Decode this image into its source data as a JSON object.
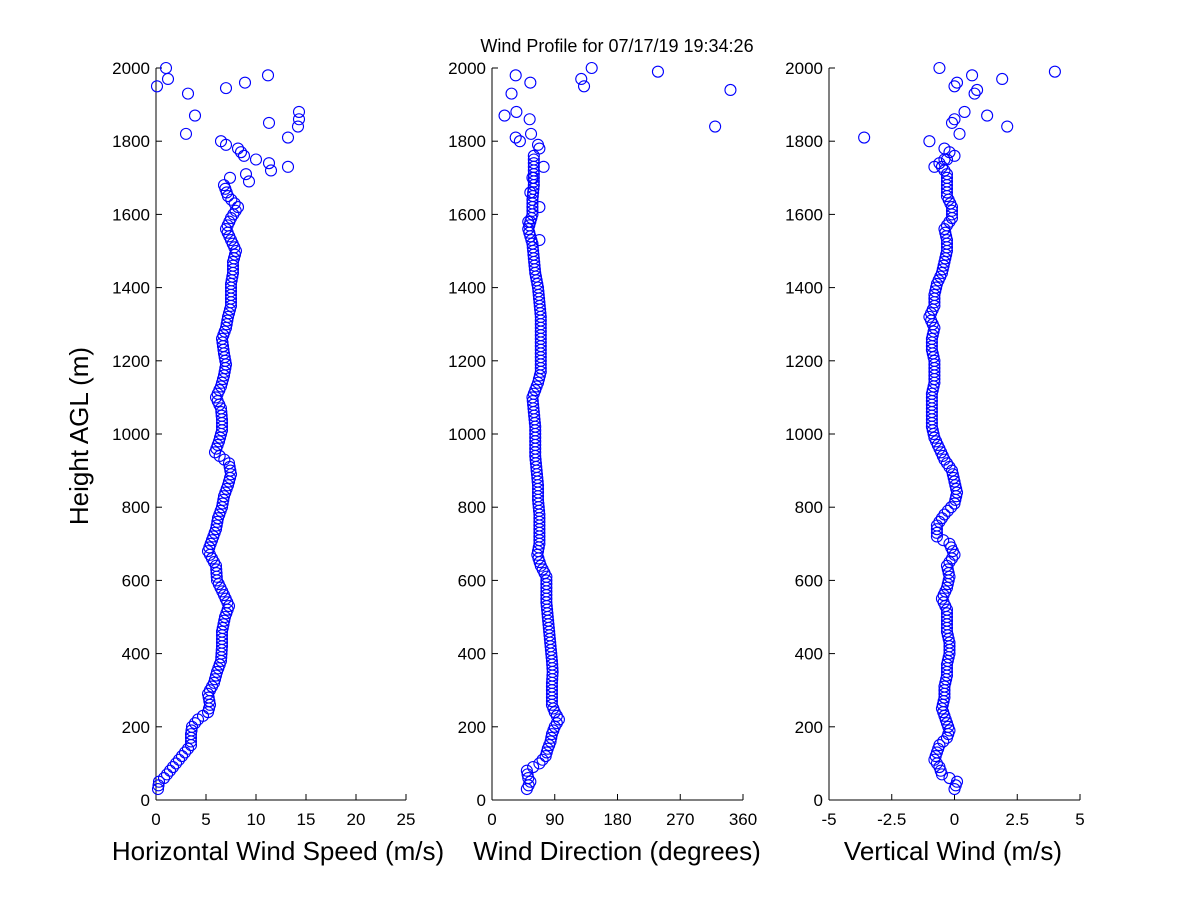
{
  "colors": {
    "marker": "#0000ff",
    "axis": "#000000",
    "background": "#ffffff"
  },
  "chart_data": [
    {
      "type": "scatter",
      "title": "Wind Profile for  07/17/19 19:34:26",
      "xlabel": "Horizontal Wind Speed (m/s)",
      "ylabel": "Height AGL (m)",
      "xlim": [
        0,
        25
      ],
      "ylim": [
        0,
        2000
      ],
      "xticks": [
        "0",
        "5",
        "10",
        "15",
        "20",
        "25"
      ],
      "yticks": [
        "0",
        "200",
        "400",
        "600",
        "800",
        "1000",
        "1200",
        "1400",
        "1600",
        "1800",
        "2000"
      ],
      "grid": false,
      "marker": "open-circle",
      "profile": [
        [
          30,
          0.2
        ],
        [
          50,
          0.3
        ],
        [
          60,
          0.8
        ],
        [
          80,
          1.4
        ],
        [
          100,
          2.0
        ],
        [
          120,
          2.6
        ],
        [
          150,
          3.5
        ],
        [
          180,
          3.5
        ],
        [
          200,
          3.6
        ],
        [
          220,
          4.2
        ],
        [
          240,
          5.2
        ],
        [
          260,
          5.4
        ],
        [
          290,
          5.2
        ],
        [
          320,
          5.8
        ],
        [
          350,
          6.1
        ],
        [
          380,
          6.5
        ],
        [
          420,
          6.6
        ],
        [
          460,
          6.6
        ],
        [
          500,
          6.9
        ],
        [
          530,
          7.3
        ],
        [
          560,
          6.8
        ],
        [
          600,
          6.1
        ],
        [
          640,
          6.0
        ],
        [
          680,
          5.2
        ],
        [
          710,
          5.6
        ],
        [
          740,
          6.0
        ],
        [
          770,
          6.2
        ],
        [
          800,
          6.6
        ],
        [
          830,
          6.8
        ],
        [
          860,
          7.2
        ],
        [
          890,
          7.5
        ],
        [
          920,
          7.3
        ],
        [
          950,
          5.9
        ],
        [
          980,
          6.3
        ],
        [
          1010,
          6.6
        ],
        [
          1040,
          6.6
        ],
        [
          1070,
          6.5
        ],
        [
          1100,
          6.0
        ],
        [
          1130,
          6.5
        ],
        [
          1160,
          6.8
        ],
        [
          1190,
          7.0
        ],
        [
          1220,
          6.8
        ],
        [
          1260,
          6.6
        ],
        [
          1290,
          7.0
        ],
        [
          1320,
          7.2
        ],
        [
          1350,
          7.5
        ],
        [
          1380,
          7.5
        ],
        [
          1410,
          7.5
        ],
        [
          1440,
          7.7
        ],
        [
          1470,
          7.7
        ],
        [
          1500,
          8.0
        ],
        [
          1530,
          7.5
        ],
        [
          1560,
          7.0
        ],
        [
          1590,
          7.5
        ],
        [
          1620,
          8.2
        ],
        [
          1650,
          7.2
        ],
        [
          1680,
          6.8
        ]
      ],
      "scattered": [
        [
          1700,
          7.4
        ],
        [
          1720,
          11.5
        ],
        [
          1730,
          13.2
        ],
        [
          1690,
          9.3
        ],
        [
          1710,
          9.0
        ],
        [
          1740,
          11.3
        ],
        [
          1750,
          10.0
        ],
        [
          1760,
          8.8
        ],
        [
          1770,
          8.5
        ],
        [
          1780,
          8.2
        ],
        [
          1790,
          7.0
        ],
        [
          1800,
          6.5
        ],
        [
          1810,
          13.2
        ],
        [
          1820,
          3.0
        ],
        [
          1840,
          14.2
        ],
        [
          1850,
          11.3
        ],
        [
          1860,
          14.3
        ],
        [
          1870,
          3.9
        ],
        [
          1880,
          14.3
        ],
        [
          1930,
          3.2
        ],
        [
          1945,
          7.0
        ],
        [
          1950,
          0.1
        ],
        [
          1960,
          8.9
        ],
        [
          1970,
          1.2
        ],
        [
          1980,
          11.2
        ],
        [
          2000,
          1.0
        ]
      ]
    },
    {
      "type": "scatter",
      "xlabel": "Wind Direction (degrees)",
      "xlim": [
        0,
        360
      ],
      "ylim": [
        0,
        2000
      ],
      "xticks": [
        "0",
        "90",
        "180",
        "270",
        "360"
      ],
      "yticks": [
        "0",
        "200",
        "400",
        "600",
        "800",
        "1000",
        "1200",
        "1400",
        "1600",
        "1800",
        "2000"
      ],
      "grid": false,
      "marker": "open-circle",
      "profile": [
        [
          30,
          50
        ],
        [
          50,
          55
        ],
        [
          60,
          52
        ],
        [
          80,
          50
        ],
        [
          100,
          68
        ],
        [
          120,
          77
        ],
        [
          140,
          80
        ],
        [
          160,
          84
        ],
        [
          180,
          86
        ],
        [
          200,
          90
        ],
        [
          220,
          96
        ],
        [
          240,
          90
        ],
        [
          260,
          86
        ],
        [
          290,
          86
        ],
        [
          320,
          86
        ],
        [
          350,
          87
        ],
        [
          380,
          86
        ],
        [
          420,
          84
        ],
        [
          460,
          82
        ],
        [
          500,
          80
        ],
        [
          540,
          78
        ],
        [
          580,
          78
        ],
        [
          610,
          78
        ],
        [
          640,
          70
        ],
        [
          670,
          65
        ],
        [
          700,
          68
        ],
        [
          740,
          68
        ],
        [
          780,
          68
        ],
        [
          820,
          66
        ],
        [
          860,
          66
        ],
        [
          900,
          64
        ],
        [
          940,
          62
        ],
        [
          980,
          62
        ],
        [
          1020,
          62
        ],
        [
          1060,
          60
        ],
        [
          1100,
          58
        ],
        [
          1140,
          66
        ],
        [
          1170,
          70
        ],
        [
          1200,
          70
        ],
        [
          1240,
          70
        ],
        [
          1280,
          70
        ],
        [
          1320,
          70
        ],
        [
          1360,
          68
        ],
        [
          1400,
          66
        ],
        [
          1440,
          62
        ],
        [
          1480,
          60
        ],
        [
          1520,
          58
        ],
        [
          1560,
          52
        ],
        [
          1600,
          58
        ],
        [
          1640,
          58
        ],
        [
          1680,
          60
        ],
        [
          1720,
          60
        ],
        [
          1760,
          60
        ]
      ],
      "scattered": [
        [
          1530,
          68
        ],
        [
          1580,
          52
        ],
        [
          1620,
          68
        ],
        [
          1660,
          55
        ],
        [
          1700,
          58
        ],
        [
          1730,
          74
        ],
        [
          1780,
          68
        ],
        [
          1790,
          66
        ],
        [
          1800,
          40
        ],
        [
          1810,
          34
        ],
        [
          1820,
          56
        ],
        [
          1840,
          320
        ],
        [
          1860,
          54
        ],
        [
          1870,
          18
        ],
        [
          1880,
          35
        ],
        [
          1930,
          28
        ],
        [
          1940,
          342
        ],
        [
          1950,
          132
        ],
        [
          1960,
          55
        ],
        [
          1970,
          128
        ],
        [
          1980,
          34
        ],
        [
          1990,
          238
        ],
        [
          2000,
          143
        ]
      ]
    },
    {
      "type": "scatter",
      "xlabel": "Vertical Wind (m/s)",
      "xlim": [
        -5,
        5
      ],
      "ylim": [
        0,
        2000
      ],
      "xticks": [
        "-5",
        "-2.5",
        "0",
        "2.5",
        "5"
      ],
      "yticks": [
        "0",
        "200",
        "400",
        "600",
        "800",
        "1000",
        "1200",
        "1400",
        "1600",
        "1800",
        "2000"
      ],
      "grid": false,
      "marker": "open-circle",
      "profile": [
        [
          30,
          0.0
        ],
        [
          50,
          0.1
        ],
        [
          70,
          -0.5
        ],
        [
          90,
          -0.6
        ],
        [
          110,
          -0.8
        ],
        [
          130,
          -0.7
        ],
        [
          150,
          -0.6
        ],
        [
          170,
          -0.3
        ],
        [
          190,
          -0.2
        ],
        [
          210,
          -0.3
        ],
        [
          230,
          -0.4
        ],
        [
          250,
          -0.5
        ],
        [
          280,
          -0.4
        ],
        [
          310,
          -0.4
        ],
        [
          340,
          -0.3
        ],
        [
          370,
          -0.3
        ],
        [
          400,
          -0.2
        ],
        [
          430,
          -0.2
        ],
        [
          460,
          -0.3
        ],
        [
          490,
          -0.3
        ],
        [
          520,
          -0.3
        ],
        [
          550,
          -0.5
        ],
        [
          580,
          -0.3
        ],
        [
          610,
          -0.2
        ],
        [
          640,
          -0.3
        ],
        [
          670,
          0.0
        ],
        [
          700,
          -0.2
        ],
        [
          720,
          -0.7
        ],
        [
          750,
          -0.7
        ],
        [
          780,
          -0.4
        ],
        [
          810,
          0.0
        ],
        [
          840,
          0.1
        ],
        [
          870,
          0.0
        ],
        [
          900,
          -0.1
        ],
        [
          930,
          -0.4
        ],
        [
          960,
          -0.6
        ],
        [
          990,
          -0.8
        ],
        [
          1020,
          -0.9
        ],
        [
          1050,
          -0.9
        ],
        [
          1080,
          -0.9
        ],
        [
          1110,
          -0.9
        ],
        [
          1140,
          -0.8
        ],
        [
          1170,
          -0.8
        ],
        [
          1200,
          -0.8
        ],
        [
          1230,
          -0.9
        ],
        [
          1260,
          -0.9
        ],
        [
          1290,
          -0.8
        ],
        [
          1320,
          -1.0
        ],
        [
          1350,
          -0.8
        ],
        [
          1380,
          -0.8
        ],
        [
          1410,
          -0.7
        ],
        [
          1440,
          -0.5
        ],
        [
          1470,
          -0.4
        ],
        [
          1500,
          -0.3
        ],
        [
          1530,
          -0.3
        ],
        [
          1560,
          -0.4
        ],
        [
          1590,
          -0.1
        ],
        [
          1620,
          -0.1
        ],
        [
          1650,
          -0.3
        ],
        [
          1680,
          -0.3
        ],
        [
          1710,
          -0.3
        ],
        [
          1740,
          -0.6
        ],
        [
          1760,
          0.0
        ]
      ],
      "scattered": [
        [
          1730,
          -0.8
        ],
        [
          1750,
          -0.4
        ],
        [
          1770,
          -0.2
        ],
        [
          1780,
          -0.4
        ],
        [
          1800,
          -1.0
        ],
        [
          1810,
          -3.6
        ],
        [
          1820,
          0.2
        ],
        [
          1840,
          2.1
        ],
        [
          1850,
          -0.1
        ],
        [
          1860,
          0.0
        ],
        [
          1870,
          1.3
        ],
        [
          1880,
          0.4
        ],
        [
          1930,
          0.8
        ],
        [
          1940,
          0.9
        ],
        [
          1950,
          0.0
        ],
        [
          1960,
          0.1
        ],
        [
          1970,
          1.9
        ],
        [
          1980,
          0.7
        ],
        [
          1990,
          4.0
        ],
        [
          2000,
          -0.6
        ]
      ]
    }
  ]
}
